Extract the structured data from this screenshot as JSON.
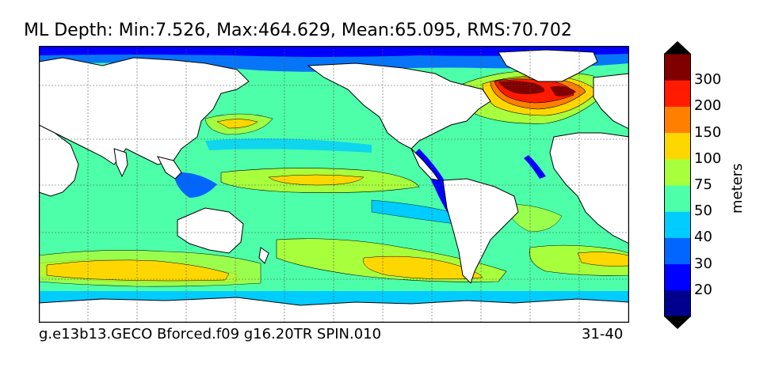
{
  "title": "ML Depth: Min:7.526, Max:464.629, Mean:65.095, RMS:70.702",
  "footer": {
    "left": "g.e13b13.GECO Bforced.f09 g16.20TR SPIN.010",
    "right": "31-40"
  },
  "colorbar": {
    "units": "meters",
    "tick_labels": [
      "20",
      "30",
      "40",
      "50",
      "75",
      "100",
      "150",
      "200",
      "300"
    ],
    "colors": [
      "#00008f",
      "#0000ff",
      "#0066ff",
      "#00ccff",
      "#4dffa8",
      "#a8ff3c",
      "#ffd700",
      "#ff8000",
      "#ff1a00",
      "#800000"
    ]
  },
  "colors": {
    "ocean_base": "#4dffa8",
    "land": "#ffffff",
    "grid": "#555555"
  }
}
